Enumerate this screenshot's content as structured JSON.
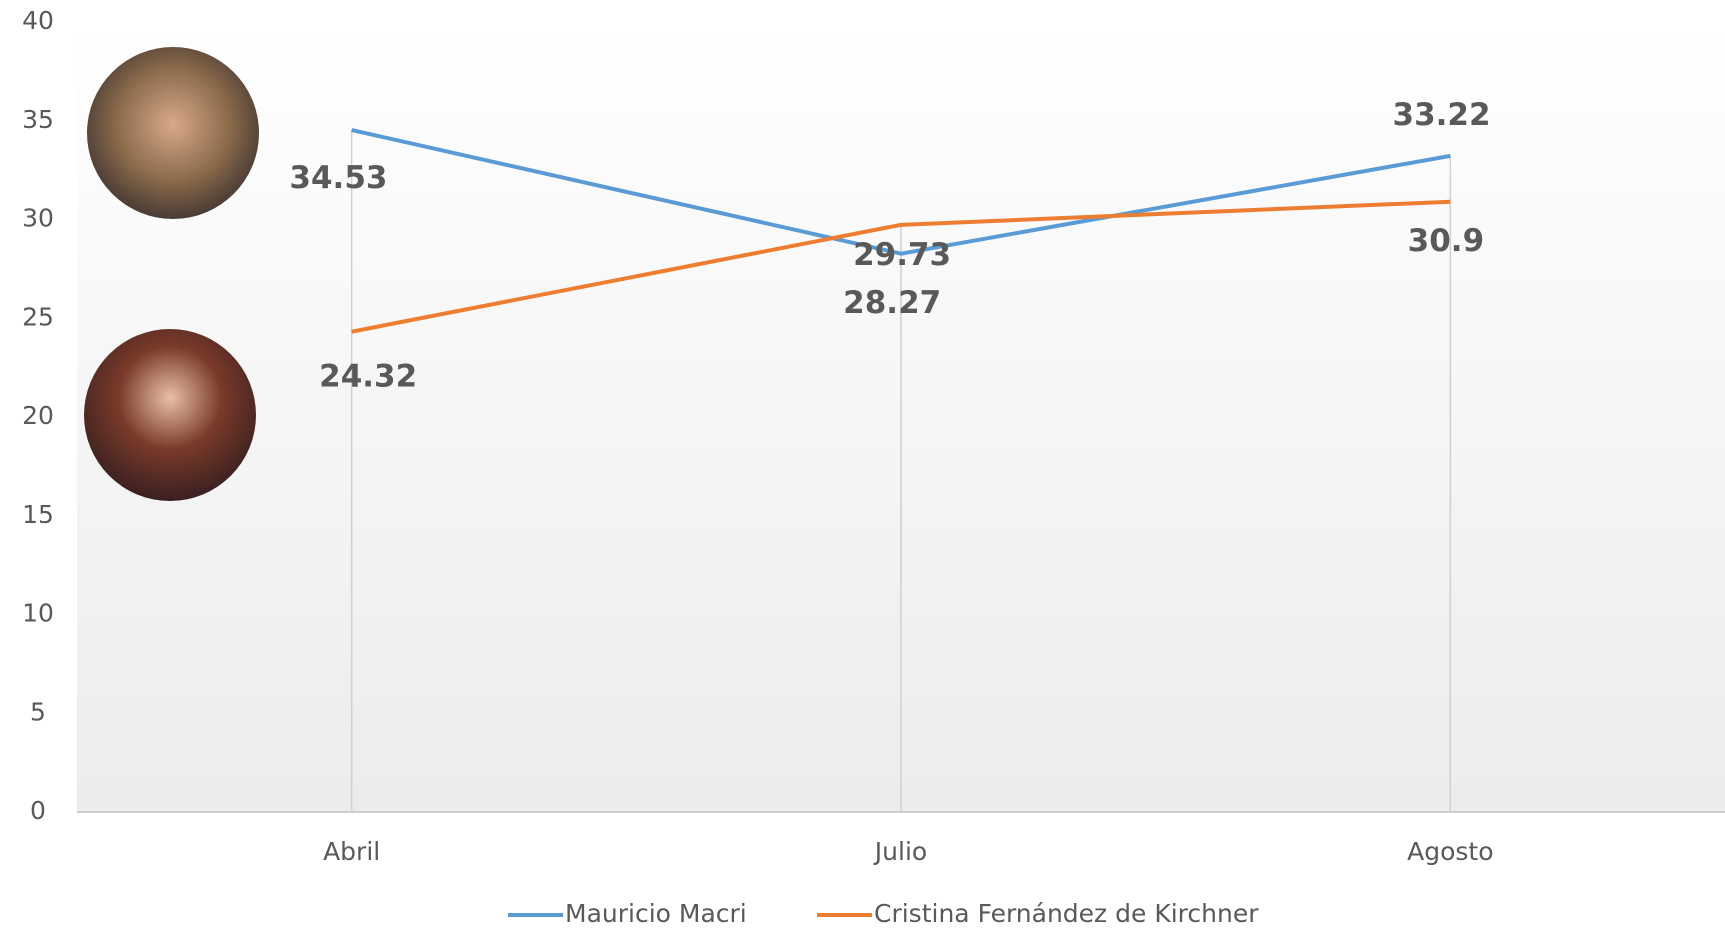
{
  "chart_data": {
    "type": "line",
    "categories": [
      "Abril",
      "Julio",
      "Agosto"
    ],
    "series": [
      {
        "name": "Mauricio Macri",
        "color": "#5b9bd5",
        "values": [
          34.53,
          28.27,
          33.22
        ]
      },
      {
        "name": "Cristina Fernández de Kirchner",
        "color": "#ed7d31",
        "values": [
          24.32,
          29.73,
          30.9
        ]
      }
    ],
    "ylim": [
      0,
      40
    ],
    "yticks": [
      0,
      5,
      10,
      15,
      20,
      25,
      30,
      35,
      40
    ],
    "legend": "bottom",
    "drop_lines": true
  }
}
